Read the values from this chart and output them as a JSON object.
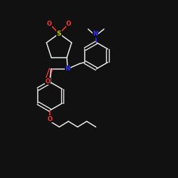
{
  "background_color": "#111111",
  "bond_color": "#e8e8e8",
  "atom_colors": {
    "O": "#ff3333",
    "N": "#3333ff",
    "S": "#cccc00",
    "C": "#e8e8e8"
  },
  "figsize": [
    2.5,
    2.5
  ],
  "dpi": 100
}
